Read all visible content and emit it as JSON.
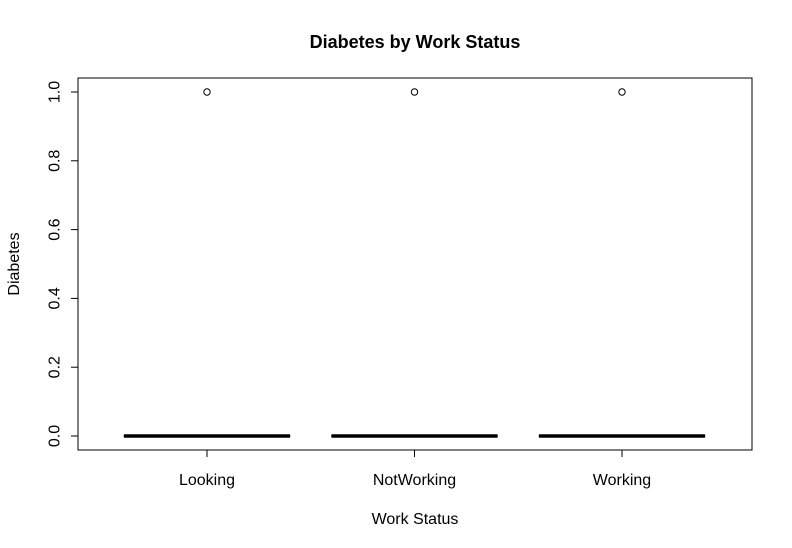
{
  "chart_data": {
    "type": "boxplot",
    "title": "Diabetes by Work Status",
    "xlabel": "Work Status",
    "ylabel": "Diabetes",
    "categories": [
      "Looking",
      "NotWorking",
      "Working"
    ],
    "ylim": [
      0.0,
      1.0
    ],
    "yticks": [
      "0.0",
      "0.2",
      "0.4",
      "0.6",
      "0.8",
      "1.0"
    ],
    "boxes": [
      {
        "category": "Looking",
        "min": 0,
        "q1": 0,
        "median": 0,
        "q3": 0,
        "max": 0,
        "outliers": [
          1
        ]
      },
      {
        "category": "NotWorking",
        "min": 0,
        "q1": 0,
        "median": 0,
        "q3": 0,
        "max": 0,
        "outliers": [
          1
        ]
      },
      {
        "category": "Working",
        "min": 0,
        "q1": 0,
        "median": 0,
        "q3": 0,
        "max": 0,
        "outliers": [
          1
        ]
      }
    ],
    "grid": false,
    "legend": "none"
  }
}
